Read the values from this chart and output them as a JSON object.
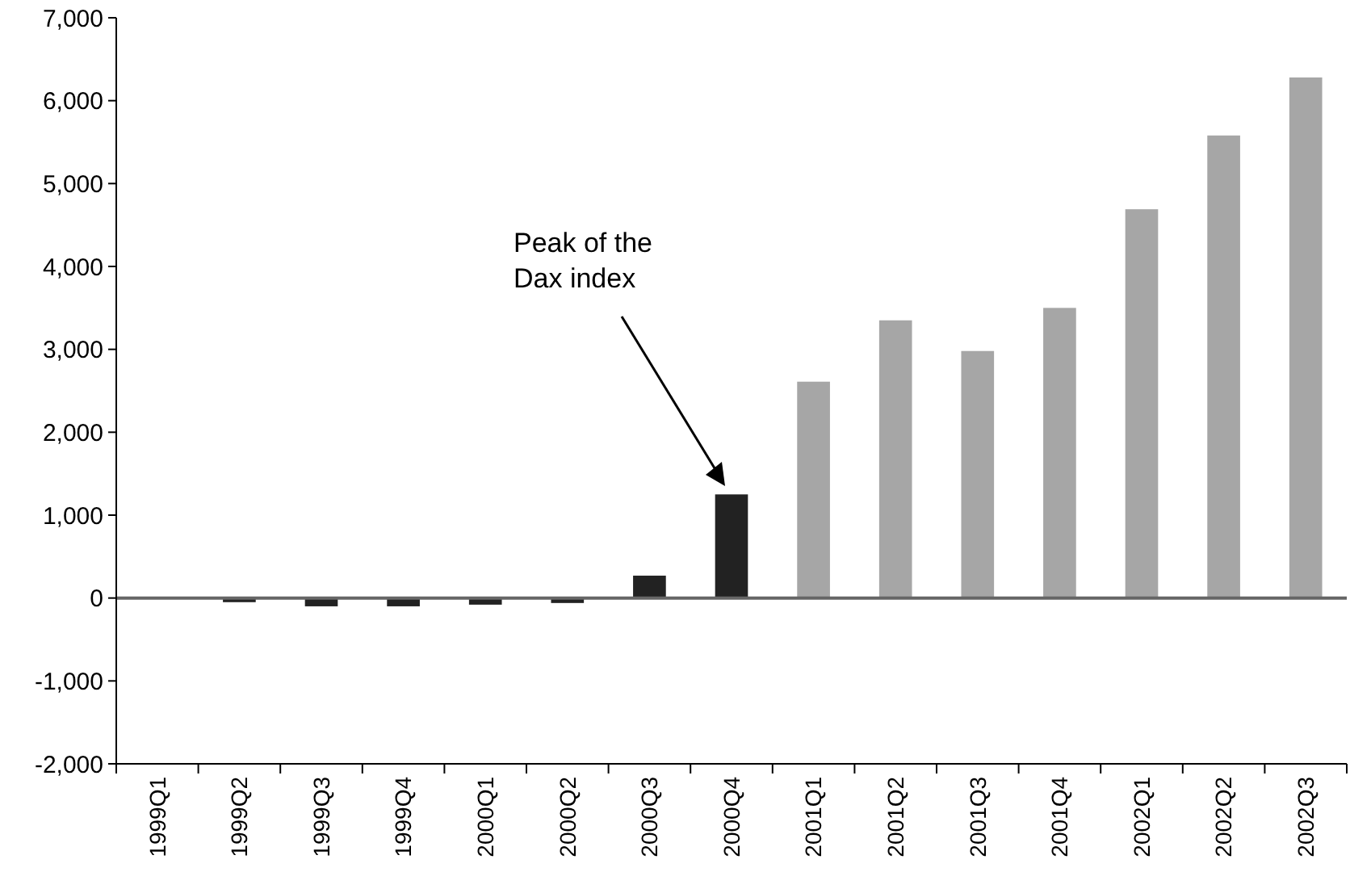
{
  "chart_data": {
    "type": "bar",
    "categories": [
      "1999Q1",
      "1999Q2",
      "1999Q3",
      "1999Q4",
      "2000Q1",
      "2000Q2",
      "2000Q3",
      "2000Q4",
      "2001Q1",
      "2001Q2",
      "2001Q3",
      "2001Q4",
      "2002Q1",
      "2002Q2",
      "2002Q3"
    ],
    "values": [
      0,
      -50,
      -100,
      -100,
      -80,
      -60,
      270,
      1250,
      2610,
      3350,
      2980,
      3500,
      4690,
      5580,
      6280
    ],
    "colors": [
      "#222222",
      "#222222",
      "#222222",
      "#222222",
      "#222222",
      "#222222",
      "#222222",
      "#222222",
      "#a6a6a6",
      "#a6a6a6",
      "#a6a6a6",
      "#a6a6a6",
      "#a6a6a6",
      "#a6a6a6",
      "#a6a6a6"
    ],
    "ylim": [
      -2000,
      7000
    ],
    "yticks": [
      {
        "value": -2000,
        "label": "-2,000"
      },
      {
        "value": -1000,
        "label": "-1,000"
      },
      0,
      {
        "value": 1000,
        "label": "1,000"
      },
      {
        "value": 2000,
        "label": "2,000"
      },
      {
        "value": 3000,
        "label": "3,000"
      },
      {
        "value": 4000,
        "label": "4,000"
      },
      {
        "value": 5000,
        "label": "5,000"
      },
      {
        "value": 6000,
        "label": "6,000"
      },
      {
        "value": 7000,
        "label": "7,000"
      }
    ],
    "ref_lines": [
      {
        "axis": "y",
        "value": 0,
        "color": "#666666"
      }
    ],
    "annotations": [
      "Peak of the\nDax index"
    ]
  }
}
